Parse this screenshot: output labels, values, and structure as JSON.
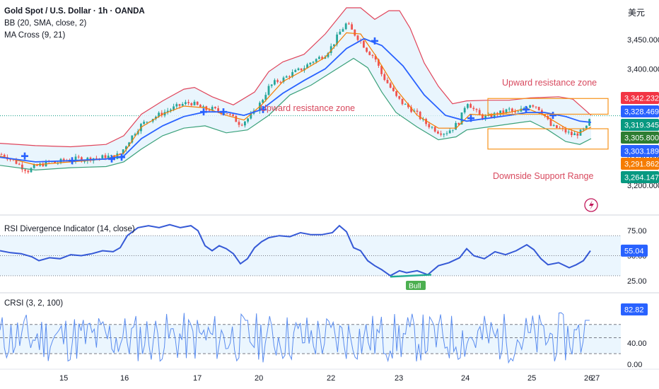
{
  "header": {
    "symbol_line": "Gold Spot / U.S. Dollar · 1h · OANDA",
    "bb_label": "BB (20, SMA, close, 2)",
    "ma_label": "MA Cross (9, 21)",
    "currency_label": "美元"
  },
  "annotations": {
    "resistance_left": "Upward resistance zone",
    "resistance_right": "Upward resistance zone",
    "support": "Downside Support Range",
    "bull_label": "Bull"
  },
  "colors": {
    "up": "#26a69a",
    "down": "#ef5350",
    "bb_upper": "#e0455b",
    "bb_lower": "#3aa17a",
    "bb_fill": "#e3f2fd",
    "ma_fast": "#f57c00",
    "ma_slow": "#2962ff",
    "cross": "#2962ff",
    "rsi_line": "#3559d6",
    "crsi_line": "#5b8def",
    "zone": "#f7931a",
    "annot_text": "#d8495e"
  },
  "chart_data": [
    {
      "type": "candlestick",
      "title": "Gold Spot / U.S. Dollar · 1h · OANDA",
      "x_ticks": [
        "15",
        "16",
        "17",
        "20",
        "22",
        "23",
        "24",
        "25",
        "26",
        "27"
      ],
      "y_ticks": [
        3450.0,
        3400.0,
        3250.0,
        3200.0
      ],
      "ylim": [
        3190,
        3505
      ],
      "price_tags": [
        {
          "value": 3342.232,
          "label": "3,342.232",
          "color": "#f23645"
        },
        {
          "value": 3328.469,
          "label": "3,328.469",
          "color": "#2962ff"
        },
        {
          "value": 3319.345,
          "label": "3,319.345",
          "color": "#089981"
        },
        {
          "value": 3305.8,
          "label": "3,305.800",
          "color": "#2e7d32"
        },
        {
          "value": 3303.189,
          "label": "3,303.189",
          "color": "#2962ff"
        },
        {
          "value": 3291.862,
          "label": "3,291.862",
          "color": "#f57c00"
        },
        {
          "value": 3264.147,
          "label": "3,264.147",
          "color": "#089981"
        }
      ],
      "y_tick_labels": [
        "3,450.000",
        "3,400.000",
        "3,250.000",
        "3,200.000"
      ],
      "close_path": [
        [
          0,
          3253
        ],
        [
          8,
          3250
        ],
        [
          15,
          3245
        ],
        [
          22,
          3240
        ],
        [
          30,
          3232
        ],
        [
          40,
          3225
        ],
        [
          50,
          3232
        ],
        [
          60,
          3236
        ],
        [
          70,
          3240
        ],
        [
          80,
          3238
        ],
        [
          90,
          3243
        ],
        [
          100,
          3242
        ],
        [
          110,
          3246
        ],
        [
          120,
          3244
        ],
        [
          130,
          3247
        ],
        [
          140,
          3246
        ],
        [
          150,
          3250
        ],
        [
          160,
          3248
        ],
        [
          170,
          3254
        ],
        [
          180,
          3272
        ],
        [
          190,
          3290
        ],
        [
          200,
          3304
        ],
        [
          210,
          3312
        ],
        [
          220,
          3318
        ],
        [
          230,
          3324
        ],
        [
          240,
          3330
        ],
        [
          250,
          3335
        ],
        [
          260,
          3340
        ],
        [
          270,
          3342
        ],
        [
          280,
          3336
        ],
        [
          290,
          3330
        ],
        [
          300,
          3331
        ],
        [
          310,
          3327
        ],
        [
          320,
          3325
        ],
        [
          330,
          3315
        ],
        [
          340,
          3305
        ],
        [
          350,
          3314
        ],
        [
          360,
          3325
        ],
        [
          370,
          3345
        ],
        [
          380,
          3368
        ],
        [
          390,
          3378
        ],
        [
          400,
          3382
        ],
        [
          410,
          3390
        ],
        [
          420,
          3396
        ],
        [
          430,
          3402
        ],
        [
          440,
          3412
        ],
        [
          450,
          3418
        ],
        [
          460,
          3425
        ],
        [
          470,
          3440
        ],
        [
          480,
          3462
        ],
        [
          490,
          3478
        ],
        [
          500,
          3462
        ],
        [
          510,
          3448
        ],
        [
          520,
          3430
        ],
        [
          530,
          3420
        ],
        [
          540,
          3390
        ],
        [
          550,
          3372
        ],
        [
          560,
          3352
        ],
        [
          570,
          3340
        ],
        [
          580,
          3332
        ],
        [
          590,
          3322
        ],
        [
          600,
          3308
        ],
        [
          610,
          3300
        ],
        [
          620,
          3292
        ],
        [
          630,
          3290
        ],
        [
          640,
          3298
        ],
        [
          650,
          3310
        ],
        [
          660,
          3345
        ],
        [
          670,
          3330
        ],
        [
          680,
          3318
        ],
        [
          690,
          3316
        ],
        [
          700,
          3322
        ],
        [
          710,
          3325
        ],
        [
          720,
          3330
        ],
        [
          730,
          3322
        ],
        [
          740,
          3332
        ],
        [
          750,
          3340
        ],
        [
          760,
          3335
        ],
        [
          770,
          3320
        ],
        [
          780,
          3300
        ],
        [
          790,
          3298
        ],
        [
          800,
          3292
        ],
        [
          810,
          3286
        ],
        [
          820,
          3290
        ],
        [
          830,
          3299
        ],
        [
          836,
          3319
        ]
      ],
      "bb_upper": [
        [
          0,
          3272
        ],
        [
          50,
          3268
        ],
        [
          100,
          3266
        ],
        [
          150,
          3270
        ],
        [
          175,
          3285
        ],
        [
          200,
          3322
        ],
        [
          230,
          3345
        ],
        [
          260,
          3365
        ],
        [
          275,
          3368
        ],
        [
          300,
          3352
        ],
        [
          330,
          3338
        ],
        [
          360,
          3360
        ],
        [
          380,
          3395
        ],
        [
          400,
          3412
        ],
        [
          430,
          3425
        ],
        [
          460,
          3460
        ],
        [
          490,
          3505
        ],
        [
          510,
          3505
        ],
        [
          530,
          3485
        ],
        [
          550,
          3500
        ],
        [
          565,
          3500
        ],
        [
          580,
          3470
        ],
        [
          600,
          3410
        ],
        [
          620,
          3370
        ],
        [
          640,
          3340
        ],
        [
          660,
          3345
        ],
        [
          690,
          3346
        ],
        [
          720,
          3346
        ],
        [
          750,
          3350
        ],
        [
          770,
          3351
        ],
        [
          790,
          3352
        ],
        [
          810,
          3348
        ],
        [
          836,
          3320
        ]
      ],
      "bb_lower": [
        [
          0,
          3234
        ],
        [
          50,
          3226
        ],
        [
          100,
          3230
        ],
        [
          150,
          3232
        ],
        [
          175,
          3240
        ],
        [
          200,
          3262
        ],
        [
          230,
          3285
        ],
        [
          260,
          3298
        ],
        [
          290,
          3302
        ],
        [
          320,
          3290
        ],
        [
          350,
          3295
        ],
        [
          380,
          3320
        ],
        [
          410,
          3355
        ],
        [
          440,
          3372
        ],
        [
          470,
          3395
        ],
        [
          500,
          3418
        ],
        [
          520,
          3402
        ],
        [
          540,
          3360
        ],
        [
          560,
          3325
        ],
        [
          590,
          3300
        ],
        [
          620,
          3278
        ],
        [
          645,
          3283
        ],
        [
          660,
          3295
        ],
        [
          690,
          3300
        ],
        [
          720,
          3305
        ],
        [
          750,
          3310
        ],
        [
          775,
          3295
        ],
        [
          800,
          3275
        ],
        [
          820,
          3270
        ],
        [
          836,
          3280
        ]
      ],
      "ma_fast": [
        [
          0,
          3250
        ],
        [
          50,
          3235
        ],
        [
          100,
          3240
        ],
        [
          150,
          3245
        ],
        [
          175,
          3255
        ],
        [
          200,
          3300
        ],
        [
          230,
          3322
        ],
        [
          260,
          3336
        ],
        [
          290,
          3333
        ],
        [
          320,
          3320
        ],
        [
          345,
          3312
        ],
        [
          370,
          3338
        ],
        [
          400,
          3378
        ],
        [
          430,
          3398
        ],
        [
          460,
          3420
        ],
        [
          490,
          3462
        ],
        [
          510,
          3460
        ],
        [
          530,
          3425
        ],
        [
          560,
          3365
        ],
        [
          590,
          3320
        ],
        [
          620,
          3298
        ],
        [
          645,
          3298
        ],
        [
          665,
          3322
        ],
        [
          690,
          3320
        ],
        [
          720,
          3325
        ],
        [
          745,
          3332
        ],
        [
          770,
          3320
        ],
        [
          800,
          3298
        ],
        [
          820,
          3290
        ],
        [
          836,
          3300
        ]
      ],
      "ma_slow": [
        [
          0,
          3248
        ],
        [
          50,
          3240
        ],
        [
          100,
          3242
        ],
        [
          150,
          3245
        ],
        [
          175,
          3250
        ],
        [
          200,
          3280
        ],
        [
          230,
          3302
        ],
        [
          260,
          3318
        ],
        [
          290,
          3326
        ],
        [
          320,
          3326
        ],
        [
          345,
          3320
        ],
        [
          370,
          3330
        ],
        [
          400,
          3358
        ],
        [
          430,
          3380
        ],
        [
          460,
          3400
        ],
        [
          490,
          3435
        ],
        [
          515,
          3452
        ],
        [
          540,
          3440
        ],
        [
          570,
          3405
        ],
        [
          600,
          3355
        ],
        [
          630,
          3320
        ],
        [
          660,
          3310
        ],
        [
          690,
          3315
        ],
        [
          720,
          3320
        ],
        [
          745,
          3325
        ],
        [
          770,
          3325
        ],
        [
          800,
          3318
        ],
        [
          820,
          3310
        ],
        [
          836,
          3308
        ]
      ],
      "cross_points": [
        [
          35,
          3250
        ],
        [
          102,
          3242
        ],
        [
          158,
          3245
        ],
        [
          172,
          3248
        ],
        [
          288,
          3326
        ],
        [
          316,
          3326
        ],
        [
          372,
          3330
        ],
        [
          530,
          3448
        ],
        [
          666,
          3315
        ],
        [
          744,
          3330
        ],
        [
          782,
          3320
        ]
      ],
      "zones": [
        {
          "x0": 690,
          "x1": 860,
          "y0": 3322,
          "y1": 3349
        },
        {
          "x0": 690,
          "x1": 860,
          "y0": 3262,
          "y1": 3297
        }
      ]
    },
    {
      "type": "line",
      "title": "RSI Divergence Indicator (14, close)",
      "y_ticks": [
        75.0,
        50.0,
        25.0
      ],
      "y_tick_labels": [
        "75.00",
        "50.00",
        "25.00"
      ],
      "ylim": [
        20,
        85
      ],
      "band": [
        30,
        70
      ],
      "current": {
        "value": 55.04,
        "label": "55.04"
      },
      "values": [
        [
          0,
          55
        ],
        [
          15,
          53
        ],
        [
          30,
          52
        ],
        [
          45,
          49
        ],
        [
          55,
          45
        ],
        [
          70,
          48
        ],
        [
          85,
          47
        ],
        [
          100,
          51
        ],
        [
          115,
          50
        ],
        [
          130,
          52
        ],
        [
          145,
          55
        ],
        [
          160,
          54
        ],
        [
          170,
          58
        ],
        [
          180,
          70
        ],
        [
          195,
          78
        ],
        [
          210,
          80
        ],
        [
          225,
          78
        ],
        [
          240,
          81
        ],
        [
          255,
          78
        ],
        [
          270,
          80
        ],
        [
          280,
          75
        ],
        [
          290,
          60
        ],
        [
          300,
          55
        ],
        [
          310,
          60
        ],
        [
          320,
          57
        ],
        [
          330,
          52
        ],
        [
          340,
          42
        ],
        [
          350,
          47
        ],
        [
          360,
          58
        ],
        [
          370,
          64
        ],
        [
          380,
          68
        ],
        [
          395,
          70
        ],
        [
          410,
          69
        ],
        [
          425,
          73
        ],
        [
          440,
          71
        ],
        [
          455,
          71
        ],
        [
          470,
          73
        ],
        [
          480,
          80
        ],
        [
          490,
          74
        ],
        [
          500,
          58
        ],
        [
          510,
          55
        ],
        [
          520,
          45
        ],
        [
          530,
          40
        ],
        [
          540,
          36
        ],
        [
          552,
          30
        ],
        [
          565,
          35
        ],
        [
          575,
          33
        ],
        [
          590,
          35
        ],
        [
          605,
          31
        ],
        [
          620,
          40
        ],
        [
          635,
          43
        ],
        [
          650,
          48
        ],
        [
          660,
          57
        ],
        [
          670,
          50
        ],
        [
          685,
          47
        ],
        [
          700,
          54
        ],
        [
          715,
          51
        ],
        [
          730,
          55
        ],
        [
          745,
          61
        ],
        [
          755,
          56
        ],
        [
          765,
          47
        ],
        [
          775,
          41
        ],
        [
          790,
          43
        ],
        [
          805,
          38
        ],
        [
          815,
          41
        ],
        [
          825,
          45
        ],
        [
          835,
          55
        ]
      ]
    },
    {
      "type": "line",
      "title": "CRSI (3, 2, 100)",
      "y_ticks": [
        40.0,
        0.0
      ],
      "y_tick_labels": [
        "40.00",
        "0.00"
      ],
      "ylim": [
        0,
        105
      ],
      "band": [
        20,
        75
      ],
      "current": {
        "value": 82.82,
        "label": "82.82"
      }
    }
  ]
}
